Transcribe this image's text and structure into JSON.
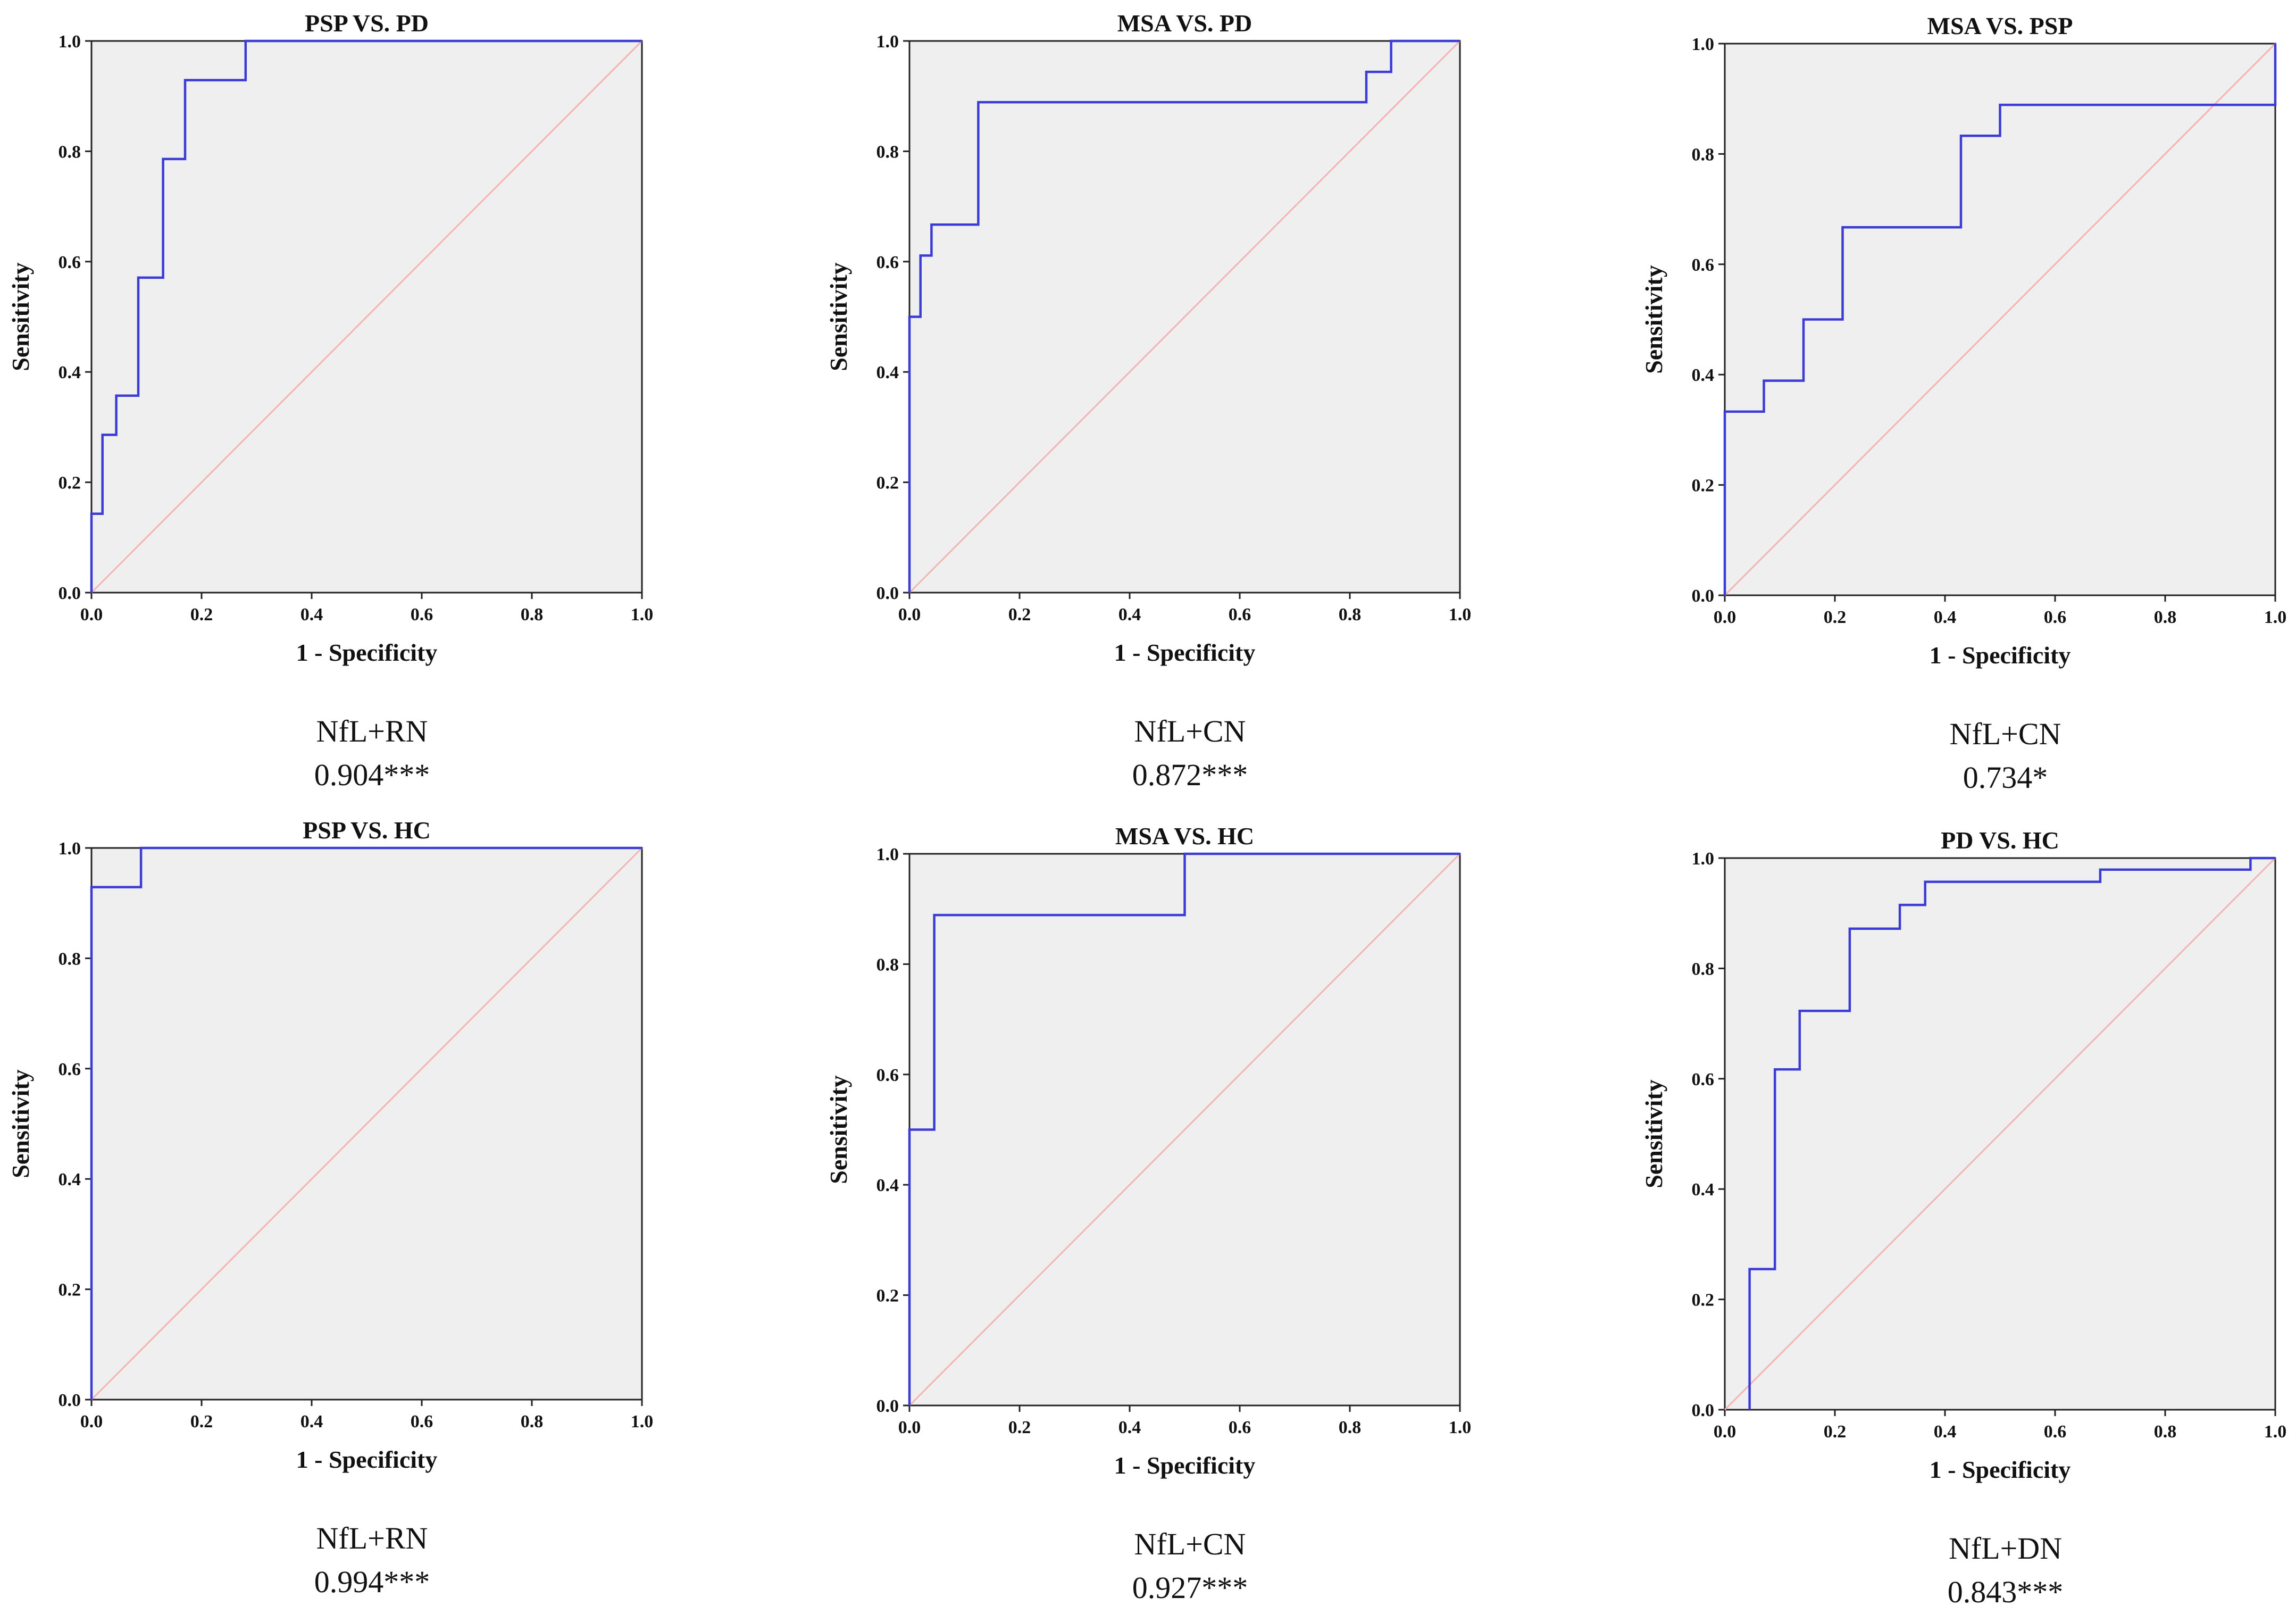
{
  "colors": {
    "plot_background": "#efefef",
    "roc_curve": "#3b3bd6",
    "reference_line": "#f4b4b4",
    "axis": "#222222"
  },
  "chart_data": [
    {
      "type": "line",
      "title": "PSP VS. PD",
      "xlabel": "1 - Specificity",
      "ylabel": "Sensitivity",
      "xlim": [
        0,
        1
      ],
      "ylim": [
        0,
        1
      ],
      "xticks": [
        "0.0",
        "0.2",
        "0.4",
        "0.6",
        "0.8",
        "1.0"
      ],
      "yticks": [
        "0.0",
        "0.2",
        "0.4",
        "0.6",
        "0.8",
        "1.0"
      ],
      "grid": false,
      "series": [
        {
          "name": "ROC",
          "x": [
            0,
            0,
            0.02,
            0.02,
            0.045,
            0.045,
            0.085,
            0.085,
            0.13,
            0.13,
            0.17,
            0.17,
            0.28,
            0.28,
            1.0
          ],
          "y": [
            0,
            0.143,
            0.143,
            0.286,
            0.286,
            0.357,
            0.357,
            0.571,
            0.571,
            0.786,
            0.786,
            0.929,
            0.929,
            1.0,
            1.0
          ]
        },
        {
          "name": "Reference Line",
          "x": [
            0,
            1
          ],
          "y": [
            0,
            1
          ]
        }
      ],
      "caption": {
        "predictor": "NfL+RN",
        "auc": "0.904***"
      }
    },
    {
      "type": "line",
      "title": "MSA VS. PD",
      "xlabel": "1 - Specificity",
      "ylabel": "Sensitivity",
      "xlim": [
        0,
        1
      ],
      "ylim": [
        0,
        1
      ],
      "xticks": [
        "0.0",
        "0.2",
        "0.4",
        "0.6",
        "0.8",
        "1.0"
      ],
      "yticks": [
        "0.0",
        "0.2",
        "0.4",
        "0.6",
        "0.8",
        "1.0"
      ],
      "grid": false,
      "series": [
        {
          "name": "ROC",
          "x": [
            0,
            0,
            0.02,
            0.02,
            0.04,
            0.04,
            0.125,
            0.125,
            0.83,
            0.83,
            0.875,
            0.875,
            1.0
          ],
          "y": [
            0,
            0.5,
            0.5,
            0.611,
            0.611,
            0.667,
            0.667,
            0.889,
            0.889,
            0.944,
            0.944,
            1.0,
            1.0
          ]
        },
        {
          "name": "Reference Line",
          "x": [
            0,
            1
          ],
          "y": [
            0,
            1
          ]
        }
      ],
      "caption": {
        "predictor": "NfL+CN",
        "auc": "0.872***"
      }
    },
    {
      "type": "line",
      "title": "MSA VS. PSP",
      "xlabel": "1 - Specificity",
      "ylabel": "Sensitivity",
      "xlim": [
        0,
        1
      ],
      "ylim": [
        0,
        1
      ],
      "xticks": [
        "0.0",
        "0.2",
        "0.4",
        "0.6",
        "0.8",
        "1.0"
      ],
      "yticks": [
        "0.0",
        "0.2",
        "0.4",
        "0.6",
        "0.8",
        "1.0"
      ],
      "grid": false,
      "series": [
        {
          "name": "ROC",
          "x": [
            0,
            0,
            0.071,
            0.071,
            0.143,
            0.143,
            0.214,
            0.214,
            0.429,
            0.429,
            0.5,
            0.5,
            1.0,
            1.0
          ],
          "y": [
            0,
            0.333,
            0.333,
            0.389,
            0.389,
            0.5,
            0.5,
            0.667,
            0.667,
            0.833,
            0.833,
            0.889,
            0.889,
            1.0
          ]
        },
        {
          "name": "Reference Line",
          "x": [
            0,
            1
          ],
          "y": [
            0,
            1
          ]
        }
      ],
      "caption": {
        "predictor": "NfL+CN",
        "auc": "0.734*"
      }
    },
    {
      "type": "line",
      "title": "PSP VS. HC",
      "xlabel": "1 - Specificity",
      "ylabel": "Sensitivity",
      "xlim": [
        0,
        1
      ],
      "ylim": [
        0,
        1
      ],
      "xticks": [
        "0.0",
        "0.2",
        "0.4",
        "0.6",
        "0.8",
        "1.0"
      ],
      "yticks": [
        "0.0",
        "0.2",
        "0.4",
        "0.6",
        "0.8",
        "1.0"
      ],
      "grid": false,
      "series": [
        {
          "name": "ROC",
          "x": [
            0,
            0,
            0.09,
            0.09,
            1.0
          ],
          "y": [
            0,
            0.929,
            0.929,
            1.0,
            1.0
          ]
        },
        {
          "name": "Reference Line",
          "x": [
            0,
            1
          ],
          "y": [
            0,
            1
          ]
        }
      ],
      "caption": {
        "predictor": "NfL+RN",
        "auc": "0.994***"
      }
    },
    {
      "type": "line",
      "title": "MSA VS. HC",
      "xlabel": "1 - Specificity",
      "ylabel": "Sensitivity",
      "xlim": [
        0,
        1
      ],
      "ylim": [
        0,
        1
      ],
      "xticks": [
        "0.0",
        "0.2",
        "0.4",
        "0.6",
        "0.8",
        "1.0"
      ],
      "yticks": [
        "0.0",
        "0.2",
        "0.4",
        "0.6",
        "0.8",
        "1.0"
      ],
      "grid": false,
      "series": [
        {
          "name": "ROC",
          "x": [
            0,
            0,
            0.045,
            0.045,
            0.5,
            0.5,
            1.0
          ],
          "y": [
            0,
            0.5,
            0.5,
            0.889,
            0.889,
            1.0,
            1.0
          ]
        },
        {
          "name": "Reference Line",
          "x": [
            0,
            1
          ],
          "y": [
            0,
            1
          ]
        }
      ],
      "caption": {
        "predictor": "NfL+CN",
        "auc": "0.927***"
      }
    },
    {
      "type": "line",
      "title": "PD VS. HC",
      "xlabel": "1 - Specificity",
      "ylabel": "Sensitivity",
      "xlim": [
        0,
        1
      ],
      "ylim": [
        0,
        1
      ],
      "xticks": [
        "0.0",
        "0.2",
        "0.4",
        "0.6",
        "0.8",
        "1.0"
      ],
      "yticks": [
        "0.0",
        "0.2",
        "0.4",
        "0.6",
        "0.8",
        "1.0"
      ],
      "grid": false,
      "series": [
        {
          "name": "ROC",
          "x": [
            0.045,
            0.045,
            0.091,
            0.091,
            0.136,
            0.136,
            0.227,
            0.227,
            0.318,
            0.318,
            0.364,
            0.364,
            0.682,
            0.682,
            0.955,
            0.955,
            1.0
          ],
          "y": [
            0,
            0.255,
            0.255,
            0.617,
            0.617,
            0.723,
            0.723,
            0.872,
            0.872,
            0.915,
            0.915,
            0.957,
            0.957,
            0.979,
            0.979,
            1.0,
            1.0
          ]
        },
        {
          "name": "Reference Line",
          "x": [
            0,
            1
          ],
          "y": [
            0,
            1
          ]
        }
      ],
      "caption": {
        "predictor": "NfL+DN",
        "auc": "0.843***"
      }
    }
  ]
}
